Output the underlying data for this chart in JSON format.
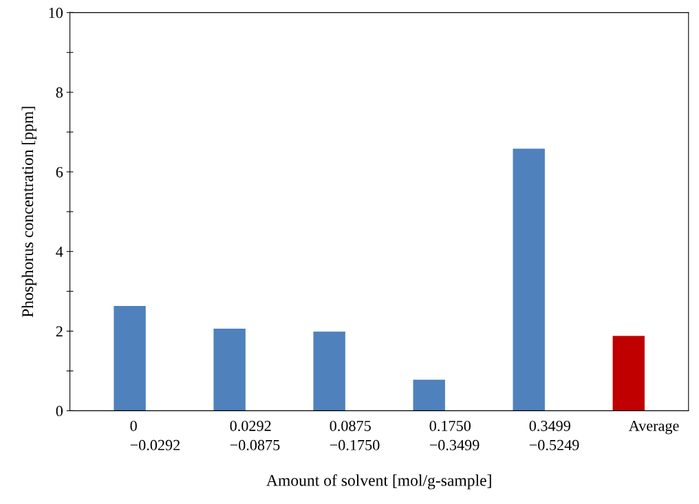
{
  "chart_data": {
    "type": "bar",
    "xlabel": "Amount of solvent [mol/g-sample]",
    "ylabel": "Phosphorus concentration [ppm]",
    "categories": [
      "0\n−0.0292",
      "0.0292\n−0.0875",
      "0.0875\n−0.1750",
      "0.1750\n−0.3499",
      "0.3499\n−0.5249",
      "Average"
    ],
    "values": [
      2.63,
      2.06,
      1.99,
      0.78,
      6.58,
      1.88
    ],
    "colors": [
      "#4f81bd",
      "#4f81bd",
      "#4f81bd",
      "#4f81bd",
      "#4f81bd",
      "#c00000"
    ],
    "ylim": [
      0,
      10
    ],
    "yticks": [
      0,
      {
        "value": 1,
        "label": null
      },
      2,
      {
        "value": 3,
        "label": null
      },
      4,
      {
        "value": 5,
        "label": null
      },
      6,
      {
        "value": 7,
        "label": null
      },
      8,
      {
        "value": 9,
        "label": null
      },
      10
    ],
    "grid": false,
    "legend": false
  }
}
